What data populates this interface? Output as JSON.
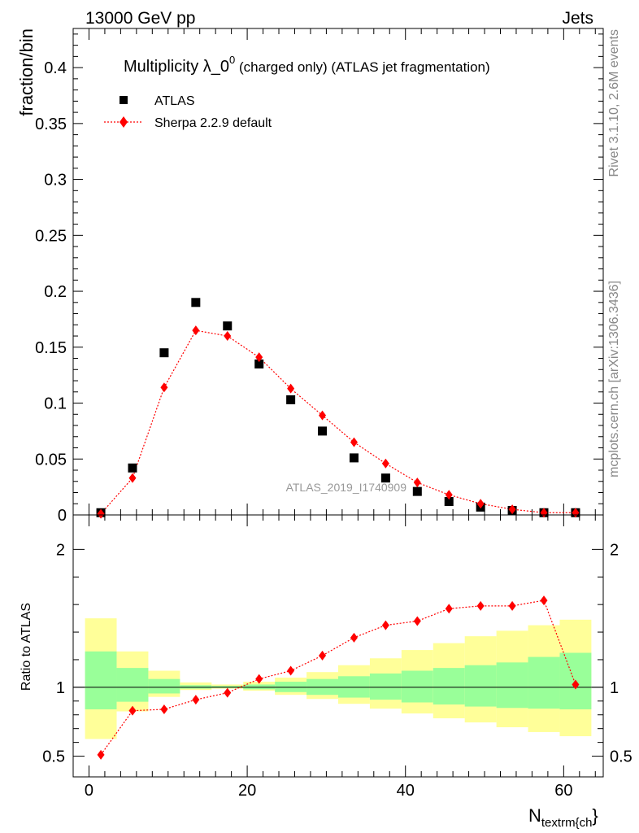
{
  "header": {
    "left": "13000 GeV pp",
    "right": "Jets"
  },
  "side_labels": {
    "rivet": "Rivet 3.1.10,  2.6M events",
    "mcplots": "mcplots.cern.ch [arXiv:1306.3436]"
  },
  "chart_data": [
    {
      "type": "scatter",
      "panel": "main",
      "title_main": "Multiplicity λ_0",
      "title_sup": "0",
      "title_suffix": " (charged only) (ATLAS jet fragmentation)",
      "ylabel": "fraction/bin",
      "watermark": "ATLAS_2019_I1740909",
      "xlim": [
        -2,
        65
      ],
      "ylim": [
        0,
        0.435
      ],
      "yticks": [
        0,
        0.05,
        0.1,
        0.15,
        0.2,
        0.25,
        0.3,
        0.35,
        0.4
      ],
      "ytick_labels": [
        "0",
        "0.05",
        "0.1",
        "0.15",
        "0.2",
        "0.25",
        "0.3",
        "0.35",
        "0.4"
      ],
      "legend": [
        {
          "name": "ATLAS",
          "color": "#000000",
          "marker": "square"
        },
        {
          "name": "Sherpa 2.2.9 default",
          "color": "#ff0000",
          "marker": "diamond"
        }
      ],
      "series": [
        {
          "name": "ATLAS",
          "x": [
            1.5,
            5.5,
            9.5,
            13.5,
            17.5,
            21.5,
            25.5,
            29.5,
            33.5,
            37.5,
            41.5,
            45.5,
            49.5,
            53.5,
            57.5,
            61.5
          ],
          "values": [
            0.002,
            0.042,
            0.145,
            0.19,
            0.169,
            0.135,
            0.103,
            0.075,
            0.051,
            0.033,
            0.021,
            0.012,
            0.007,
            0.004,
            0.002,
            0.002
          ]
        },
        {
          "name": "Sherpa 2.2.9 default",
          "x": [
            1.5,
            5.5,
            9.5,
            13.5,
            17.5,
            21.5,
            25.5,
            29.5,
            33.5,
            37.5,
            41.5,
            45.5,
            49.5,
            53.5,
            57.5,
            61.5
          ],
          "values": [
            0.001,
            0.033,
            0.114,
            0.165,
            0.16,
            0.141,
            0.113,
            0.089,
            0.065,
            0.046,
            0.029,
            0.018,
            0.01,
            0.005,
            0.002,
            0.002
          ]
        }
      ]
    },
    {
      "type": "line",
      "panel": "ratio",
      "ylabel": "Ratio to ATLAS",
      "xlabel_main": "N",
      "xlabel_sub": "textrm{ch",
      "xlabel_close": "}",
      "xlim": [
        -2,
        65
      ],
      "ylim": [
        0.35,
        2.25
      ],
      "yticks": [
        0.5,
        1,
        2
      ],
      "ytick_labels": [
        "0.5",
        "1",
        "2"
      ],
      "xticks": [
        0,
        20,
        40,
        60
      ],
      "xtick_labels": [
        "0",
        "20",
        "40",
        "60"
      ],
      "bands": {
        "bin_edges": [
          -0.5,
          3.5,
          7.5,
          11.5,
          15.5,
          19.5,
          23.5,
          27.5,
          31.5,
          35.5,
          39.5,
          43.5,
          47.5,
          51.5,
          55.5,
          59.5,
          63.5
        ],
        "inner_low": [
          0.84,
          0.895,
          0.955,
          0.99,
          0.995,
          0.985,
          0.965,
          0.945,
          0.925,
          0.91,
          0.89,
          0.875,
          0.86,
          0.85,
          0.845,
          0.84
        ],
        "inner_high": [
          1.26,
          1.14,
          1.06,
          1.015,
          1.01,
          1.02,
          1.04,
          1.06,
          1.08,
          1.1,
          1.12,
          1.14,
          1.16,
          1.18,
          1.22,
          1.25
        ],
        "outer_low": [
          0.625,
          0.825,
          0.93,
          0.98,
          0.99,
          0.975,
          0.945,
          0.915,
          0.88,
          0.845,
          0.81,
          0.775,
          0.745,
          0.71,
          0.675,
          0.645
        ],
        "outer_high": [
          1.5,
          1.26,
          1.12,
          1.035,
          1.02,
          1.04,
          1.07,
          1.11,
          1.16,
          1.21,
          1.27,
          1.32,
          1.37,
          1.41,
          1.45,
          1.49
        ],
        "inner_color": "#99ff99",
        "outer_color": "#ffff99"
      },
      "reference": 1,
      "series": [
        {
          "name": "Sherpa 2.2.9 default",
          "color": "#ff0000",
          "x": [
            1.5,
            5.5,
            9.5,
            13.5,
            17.5,
            21.5,
            25.5,
            29.5,
            33.5,
            37.5,
            41.5,
            45.5,
            49.5,
            53.5,
            57.5,
            61.5
          ],
          "values": [
            0.51,
            0.83,
            0.84,
            0.91,
            0.96,
            1.06,
            1.12,
            1.23,
            1.36,
            1.45,
            1.48,
            1.57,
            1.59,
            1.59,
            1.63,
            1.02
          ]
        }
      ]
    }
  ]
}
